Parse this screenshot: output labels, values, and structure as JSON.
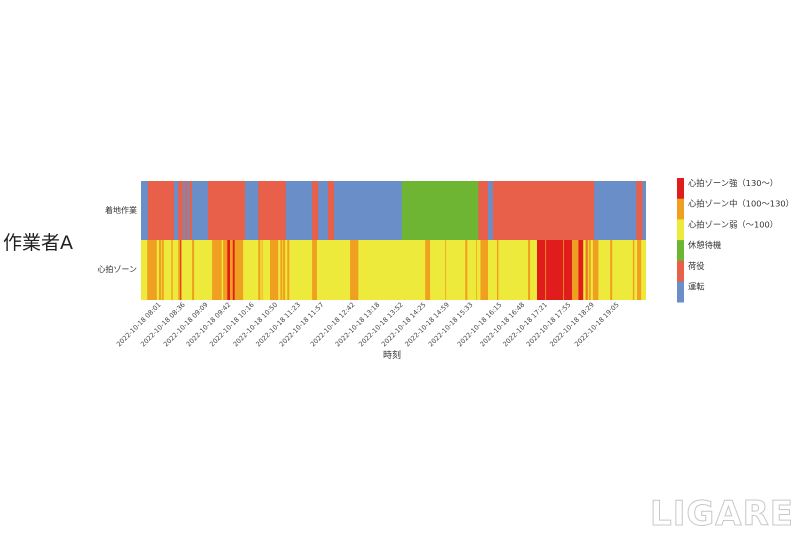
{
  "row_label_left": "作業者A",
  "watermark": "LIGARE",
  "colors": {
    "運転": "#6a8ec8",
    "荷役": "#e8604a",
    "休憩待機": "#6db532",
    "心拍ゾーン弱（～100）": "#eeea3c",
    "心拍ゾーン中（100～130）": "#f0a020",
    "心拍ゾーン強（130～）": "#e01c1c"
  },
  "chart_data": {
    "type": "heatmap",
    "xlabel": "時刻",
    "ylabel": "",
    "date": "2022-10-18",
    "xlim": [
      "07:36",
      "19:48"
    ],
    "x_ticks": [
      "2022-10-18 08:01",
      "2022-10-18 08:36",
      "2022-10-18 09:09",
      "2022-10-18 09:42",
      "2022-10-18 10:16",
      "2022-10-18 10:50",
      "2022-10-18 11:23",
      "2022-10-18 11:57",
      "2022-10-18 12:42",
      "2022-10-18 13:18",
      "2022-10-18 13:52",
      "2022-10-18 14:25",
      "2022-10-18 14:59",
      "2022-10-18 15:33",
      "2022-10-18 16:15",
      "2022-10-18 16:48",
      "2022-10-18 17:21",
      "2022-10-18 17:55",
      "2022-10-18 18:29",
      "2022-10-18 19:05"
    ],
    "rows": [
      {
        "label": "着地作業",
        "base": "運転",
        "segments": [
          [
            "07:36",
            "07:46",
            "運転"
          ],
          [
            "07:46",
            "08:24",
            "荷役"
          ],
          [
            "08:24",
            "08:30",
            "運転"
          ],
          [
            "08:30",
            "08:37",
            "荷役"
          ],
          [
            "08:37",
            "08:40",
            "運転"
          ],
          [
            "08:40",
            "08:43",
            "荷役"
          ],
          [
            "08:43",
            "08:46",
            "運転"
          ],
          [
            "08:46",
            "08:50",
            "荷役"
          ],
          [
            "08:50",
            "09:13",
            "運転"
          ],
          [
            "09:13",
            "10:07",
            "荷役"
          ],
          [
            "10:07",
            "10:26",
            "運転"
          ],
          [
            "10:26",
            "11:06",
            "荷役"
          ],
          [
            "11:06",
            "11:44",
            "運転"
          ],
          [
            "11:44",
            "11:53",
            "荷役"
          ],
          [
            "11:53",
            "12:07",
            "運転"
          ],
          [
            "12:07",
            "12:16",
            "荷役"
          ],
          [
            "12:16",
            "13:54",
            "運転"
          ],
          [
            "13:54",
            "15:45",
            "休憩待機"
          ],
          [
            "15:45",
            "15:59",
            "荷役"
          ],
          [
            "15:59",
            "16:06",
            "運転"
          ],
          [
            "16:06",
            "18:33",
            "荷役"
          ],
          [
            "18:33",
            "19:34",
            "運転"
          ],
          [
            "19:34",
            "19:43",
            "荷役"
          ],
          [
            "19:43",
            "19:48",
            "運転"
          ]
        ]
      },
      {
        "label": "心拍ゾーン",
        "base": "心拍ゾーン弱（～100）",
        "segments": [
          [
            "07:45",
            "07:59",
            "心拍ゾーン中（100～130）"
          ],
          [
            "08:02",
            "08:05",
            "心拍ゾーン中（100～130）"
          ],
          [
            "08:06",
            "08:09",
            "心拍ゾーン中（100～130）"
          ],
          [
            "08:20",
            "08:22",
            "心拍ゾーン中（100～130）"
          ],
          [
            "08:30",
            "08:35",
            "心拍ゾーン中（100～130）"
          ],
          [
            "08:33",
            "08:34",
            "心拍ゾーン強（130～）"
          ],
          [
            "08:50",
            "08:53",
            "心拍ゾーン中（100～130）"
          ],
          [
            "09:19",
            "09:33",
            "心拍ゾーン中（100～130）"
          ],
          [
            "09:35",
            "09:41",
            "心拍ゾーン中（100～130）"
          ],
          [
            "09:41",
            "09:45",
            "心拍ゾーン強（130～）"
          ],
          [
            "09:45",
            "09:49",
            "心拍ゾーン中（100～130）"
          ],
          [
            "09:49",
            "09:52",
            "心拍ゾーン強（130～）"
          ],
          [
            "09:52",
            "10:04",
            "心拍ゾーン中（100～130）"
          ],
          [
            "10:26",
            "10:29",
            "心拍ゾーン中（100～130）"
          ],
          [
            "10:31",
            "10:32",
            "心拍ゾーン中（100～130）"
          ],
          [
            "10:43",
            "10:55",
            "心拍ゾーン中（100～130）"
          ],
          [
            "10:58",
            "11:01",
            "心拍ゾーン中（100～130）"
          ],
          [
            "11:02",
            "11:05",
            "心拍ゾーン中（100～130）"
          ],
          [
            "11:08",
            "11:11",
            "心拍ゾーン中（100～130）"
          ],
          [
            "11:44",
            "11:51",
            "心拍ゾーン中（100～130）"
          ],
          [
            "12:39",
            "12:51",
            "心拍ゾーン中（100～130）"
          ],
          [
            "14:28",
            "14:35",
            "心拍ゾーン中（100～130）"
          ],
          [
            "14:57",
            "14:58",
            "心拍ゾーン中（100～130）"
          ],
          [
            "15:26",
            "15:29",
            "心拍ゾーン中（100～130）"
          ],
          [
            "15:42",
            "15:43",
            "心拍ゾーン中（100～130）"
          ],
          [
            "15:48",
            "15:59",
            "心拍ゾーン中（100～130）"
          ],
          [
            "16:12",
            "16:14",
            "心拍ゾーン中（100～130）"
          ],
          [
            "16:57",
            "17:00",
            "心拍ゾーン中（100～130）"
          ],
          [
            "17:10",
            "18:01",
            "心拍ゾーン強（130～）"
          ],
          [
            "17:22",
            "17:23",
            "心拍ゾーン中（100～130）"
          ],
          [
            "17:48",
            "17:49",
            "心拍ゾーン中（100～130）"
          ],
          [
            "18:01",
            "18:10",
            "心拍ゾーン中（100～130）"
          ],
          [
            "18:10",
            "18:17",
            "心拍ゾーン強（130～）"
          ],
          [
            "18:20",
            "18:22",
            "心拍ゾーン中（100～130）"
          ],
          [
            "18:22",
            "18:23",
            "心拍ゾーン強（130～）"
          ],
          [
            "18:25",
            "18:28",
            "心拍ゾーン中（100～130）"
          ],
          [
            "18:31",
            "18:39",
            "心拍ゾーン中（100～130）"
          ],
          [
            "18:56",
            "18:59",
            "心拍ゾーン中（100～130）"
          ],
          [
            "19:29",
            "19:31",
            "心拍ゾーン中（100～130）"
          ],
          [
            "19:35",
            "19:41",
            "心拍ゾーン中（100～130）"
          ]
        ]
      }
    ],
    "legend": {
      "position": "right",
      "entries": [
        "心拍ゾーン強（130～）",
        "心拍ゾーン中（100～130）",
        "心拍ゾーン弱（～100）",
        "休憩待機",
        "荷役",
        "運転"
      ]
    }
  }
}
